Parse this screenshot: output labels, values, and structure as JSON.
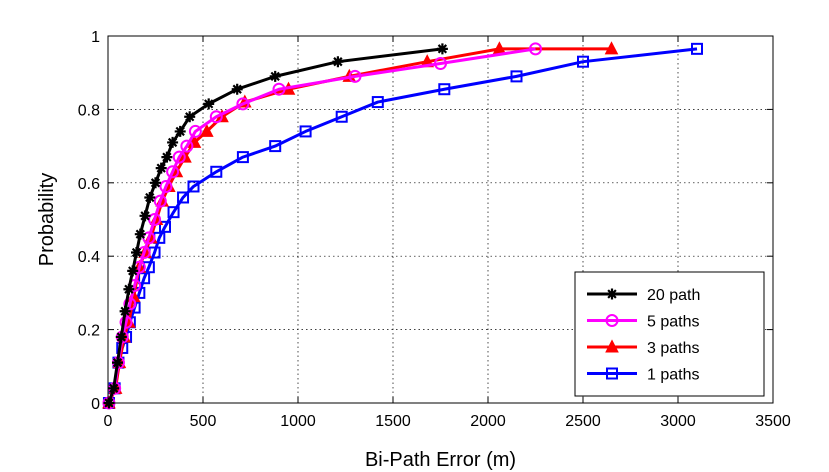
{
  "chart_data": {
    "type": "line",
    "xlabel": "Bi-Path Error (m)",
    "ylabel": "Probability",
    "xlim": [
      0,
      3500
    ],
    "ylim": [
      0,
      1
    ],
    "xticks": [
      0,
      500,
      1000,
      1500,
      2000,
      2500,
      3000,
      3500
    ],
    "yticks": [
      0,
      0.2,
      0.4,
      0.6,
      0.8,
      1
    ],
    "xtick_labels": [
      "0",
      "500",
      "1000",
      "1500",
      "2000",
      "2500",
      "3000",
      "3500"
    ],
    "ytick_labels": [
      "0",
      "0.2",
      "0.4",
      "0.6",
      "0.8",
      "1"
    ],
    "grid": true,
    "legend_position": "bottom-right",
    "series": [
      {
        "name": "20 path",
        "color": "#000000",
        "marker": "star",
        "x": [
          5,
          30,
          50,
          70,
          90,
          110,
          130,
          150,
          170,
          195,
          220,
          250,
          280,
          310,
          340,
          380,
          430,
          530,
          680,
          880,
          1210,
          1760
        ],
        "y": [
          0,
          0.04,
          0.11,
          0.18,
          0.25,
          0.31,
          0.36,
          0.41,
          0.46,
          0.51,
          0.56,
          0.6,
          0.64,
          0.67,
          0.71,
          0.74,
          0.78,
          0.815,
          0.855,
          0.89,
          0.93,
          0.965
        ]
      },
      {
        "name": "5 paths",
        "color": "#ff00ff",
        "marker": "circle",
        "x": [
          5,
          35,
          55,
          75,
          95,
          115,
          140,
          165,
          190,
          215,
          245,
          275,
          305,
          340,
          375,
          415,
          460,
          570,
          710,
          900,
          1300,
          1750,
          2250
        ],
        "y": [
          0,
          0.04,
          0.11,
          0.18,
          0.22,
          0.27,
          0.32,
          0.37,
          0.41,
          0.45,
          0.5,
          0.55,
          0.59,
          0.63,
          0.67,
          0.7,
          0.74,
          0.78,
          0.815,
          0.855,
          0.89,
          0.925,
          0.965
        ]
      },
      {
        "name": "3 paths",
        "color": "#ff0000",
        "marker": "triangle",
        "x": [
          5,
          40,
          60,
          85,
          110,
          135,
          165,
          195,
          225,
          255,
          285,
          320,
          360,
          405,
          455,
          520,
          600,
          720,
          950,
          1270,
          1680,
          2060,
          2650
        ],
        "y": [
          0,
          0.04,
          0.11,
          0.18,
          0.22,
          0.29,
          0.37,
          0.41,
          0.45,
          0.5,
          0.55,
          0.59,
          0.63,
          0.67,
          0.71,
          0.74,
          0.78,
          0.82,
          0.855,
          0.89,
          0.93,
          0.965,
          0.965
        ]
      },
      {
        "name": "1 paths",
        "color": "#0000ff",
        "marker": "square",
        "x": [
          5,
          35,
          55,
          75,
          95,
          115,
          140,
          165,
          190,
          215,
          245,
          270,
          300,
          345,
          395,
          450,
          570,
          710,
          880,
          1040,
          1230,
          1420,
          1770,
          2150,
          2500,
          3100
        ],
        "y": [
          0,
          0.04,
          0.11,
          0.15,
          0.18,
          0.22,
          0.26,
          0.3,
          0.34,
          0.37,
          0.41,
          0.45,
          0.48,
          0.52,
          0.56,
          0.59,
          0.63,
          0.67,
          0.7,
          0.74,
          0.78,
          0.82,
          0.855,
          0.89,
          0.93,
          0.965
        ]
      }
    ]
  }
}
